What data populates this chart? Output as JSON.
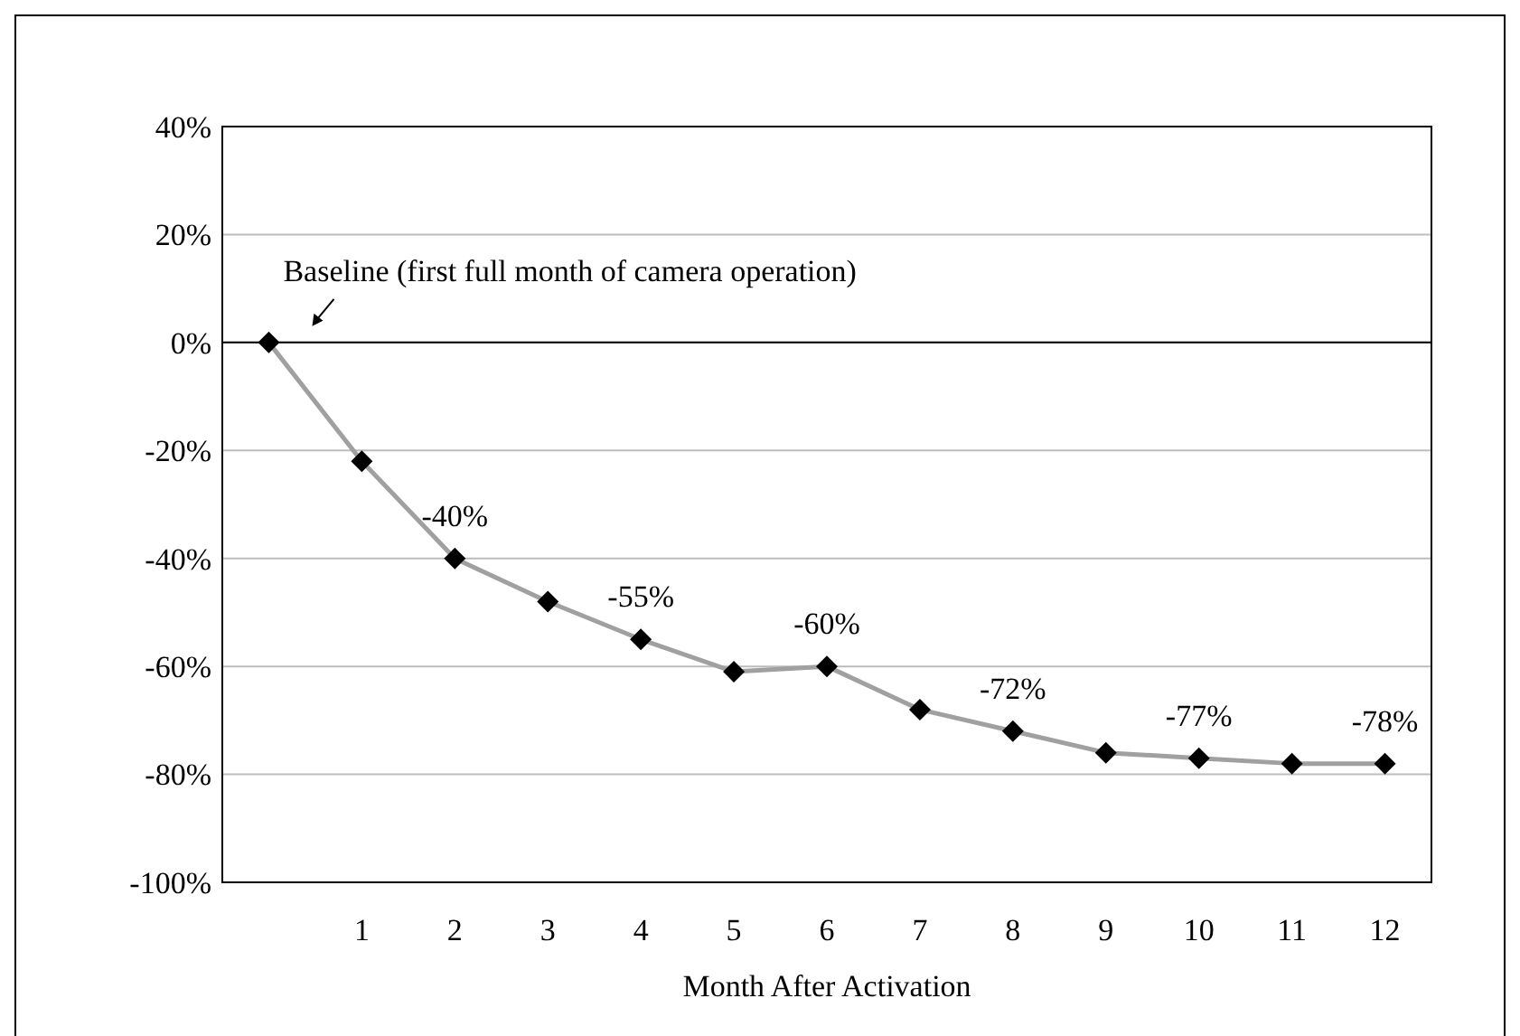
{
  "chart_data": {
    "type": "line",
    "xlabel": "Month After Activation",
    "x": [
      0,
      1,
      2,
      3,
      4,
      5,
      6,
      7,
      8,
      9,
      10,
      11,
      12
    ],
    "xlim": [
      -0.5,
      12.5
    ],
    "xticks": [
      1,
      2,
      3,
      4,
      5,
      6,
      7,
      8,
      9,
      10,
      11,
      12
    ],
    "series": [
      {
        "color": "#a0a0a0",
        "colors": [
          "#000000",
          "#000000",
          "#000000",
          "#000000",
          "#000000",
          "#000000",
          "#000000",
          "#000000",
          "#000000",
          "#000000",
          "#000000",
          "#000000",
          "#000000"
        ],
        "values": [
          0,
          -22,
          -40,
          -48,
          -55,
          -61,
          -60,
          -68,
          -72,
          -76,
          -77,
          -78,
          -78
        ],
        "value_labels": [
          null,
          null,
          "-40%",
          null,
          "-55%",
          null,
          "-60%",
          null,
          "-72%",
          null,
          "-77%",
          null,
          "-78%"
        ]
      }
    ],
    "ylim": [
      -100,
      40
    ],
    "yticks": [
      {
        "value": -100,
        "label": "-100%"
      },
      {
        "value": -80,
        "label": "-80%"
      },
      {
        "value": -60,
        "label": "-60%"
      },
      {
        "value": -40,
        "label": "-40%"
      },
      {
        "value": -20,
        "label": "-20%"
      },
      {
        "value": 0,
        "label": "0%"
      },
      {
        "value": 20,
        "label": "20%"
      },
      {
        "value": 40,
        "label": "40%"
      }
    ],
    "grid": "y",
    "ref_lines": [
      {
        "axis": "y",
        "value": 0,
        "color": "#000000"
      }
    ],
    "marker": "diamond",
    "line_style": "solid",
    "annotations": [
      {
        "text": "Baseline (first full month of camera operation)",
        "x": 0,
        "y": 0
      }
    ]
  }
}
